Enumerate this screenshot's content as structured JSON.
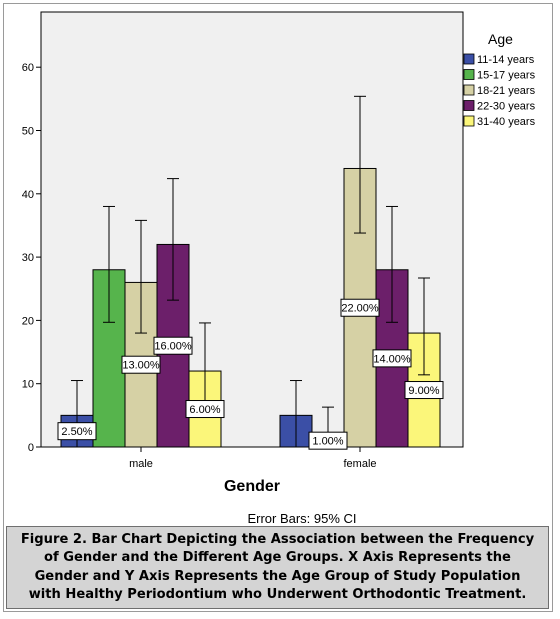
{
  "chart_data": {
    "type": "bar",
    "xlabel": "Gender",
    "ylabel": "",
    "ylim": [
      0,
      70
    ],
    "yticks": [
      0,
      10,
      20,
      30,
      40,
      50,
      60
    ],
    "grid": false,
    "legend": {
      "title": "Age",
      "position": "top-right"
    },
    "categories": [
      "male",
      "female"
    ],
    "series": [
      {
        "name": "11-14 years",
        "color": "#3b4fa6",
        "values": [
          5,
          5
        ],
        "ci": [
          [
            0,
            10.5
          ],
          [
            0,
            10.5
          ]
        ],
        "labels": [
          "2.50%",
          ""
        ]
      },
      {
        "name": "15-17 years",
        "color": "#56b44c",
        "values": [
          28,
          2
        ],
        "ci": [
          [
            19.7,
            38
          ],
          [
            0,
            6.3
          ]
        ],
        "labels": [
          "",
          "1.00%"
        ]
      },
      {
        "name": "18-21 years",
        "color": "#d6d1a5",
        "values": [
          26,
          44
        ],
        "ci": [
          [
            18,
            35.8
          ],
          [
            33.8,
            55.4
          ]
        ],
        "labels": [
          "13.00%",
          "22.00%"
        ]
      },
      {
        "name": "22-30 years",
        "color": "#6c1f6a",
        "values": [
          32,
          28
        ],
        "ci": [
          [
            23.2,
            42.4
          ],
          [
            19.7,
            38
          ]
        ],
        "labels": [
          "16.00%",
          "14.00%"
        ]
      },
      {
        "name": "31-40 years",
        "color": "#fbf67a",
        "values": [
          12,
          18
        ],
        "ci": [
          [
            6,
            19.6
          ],
          [
            11.4,
            26.7
          ]
        ],
        "labels": [
          "6.00%",
          "9.00%"
        ]
      }
    ],
    "note": "Error Bars: 95% CI"
  },
  "caption": "Figure 2. Bar Chart Depicting the Association between the Frequency of Gender and the Different Age Groups. X Axis Represents the Gender and Y Axis Represents the Age Group of Study Population with Healthy Periodontium who Underwent Orthodontic Treatment."
}
